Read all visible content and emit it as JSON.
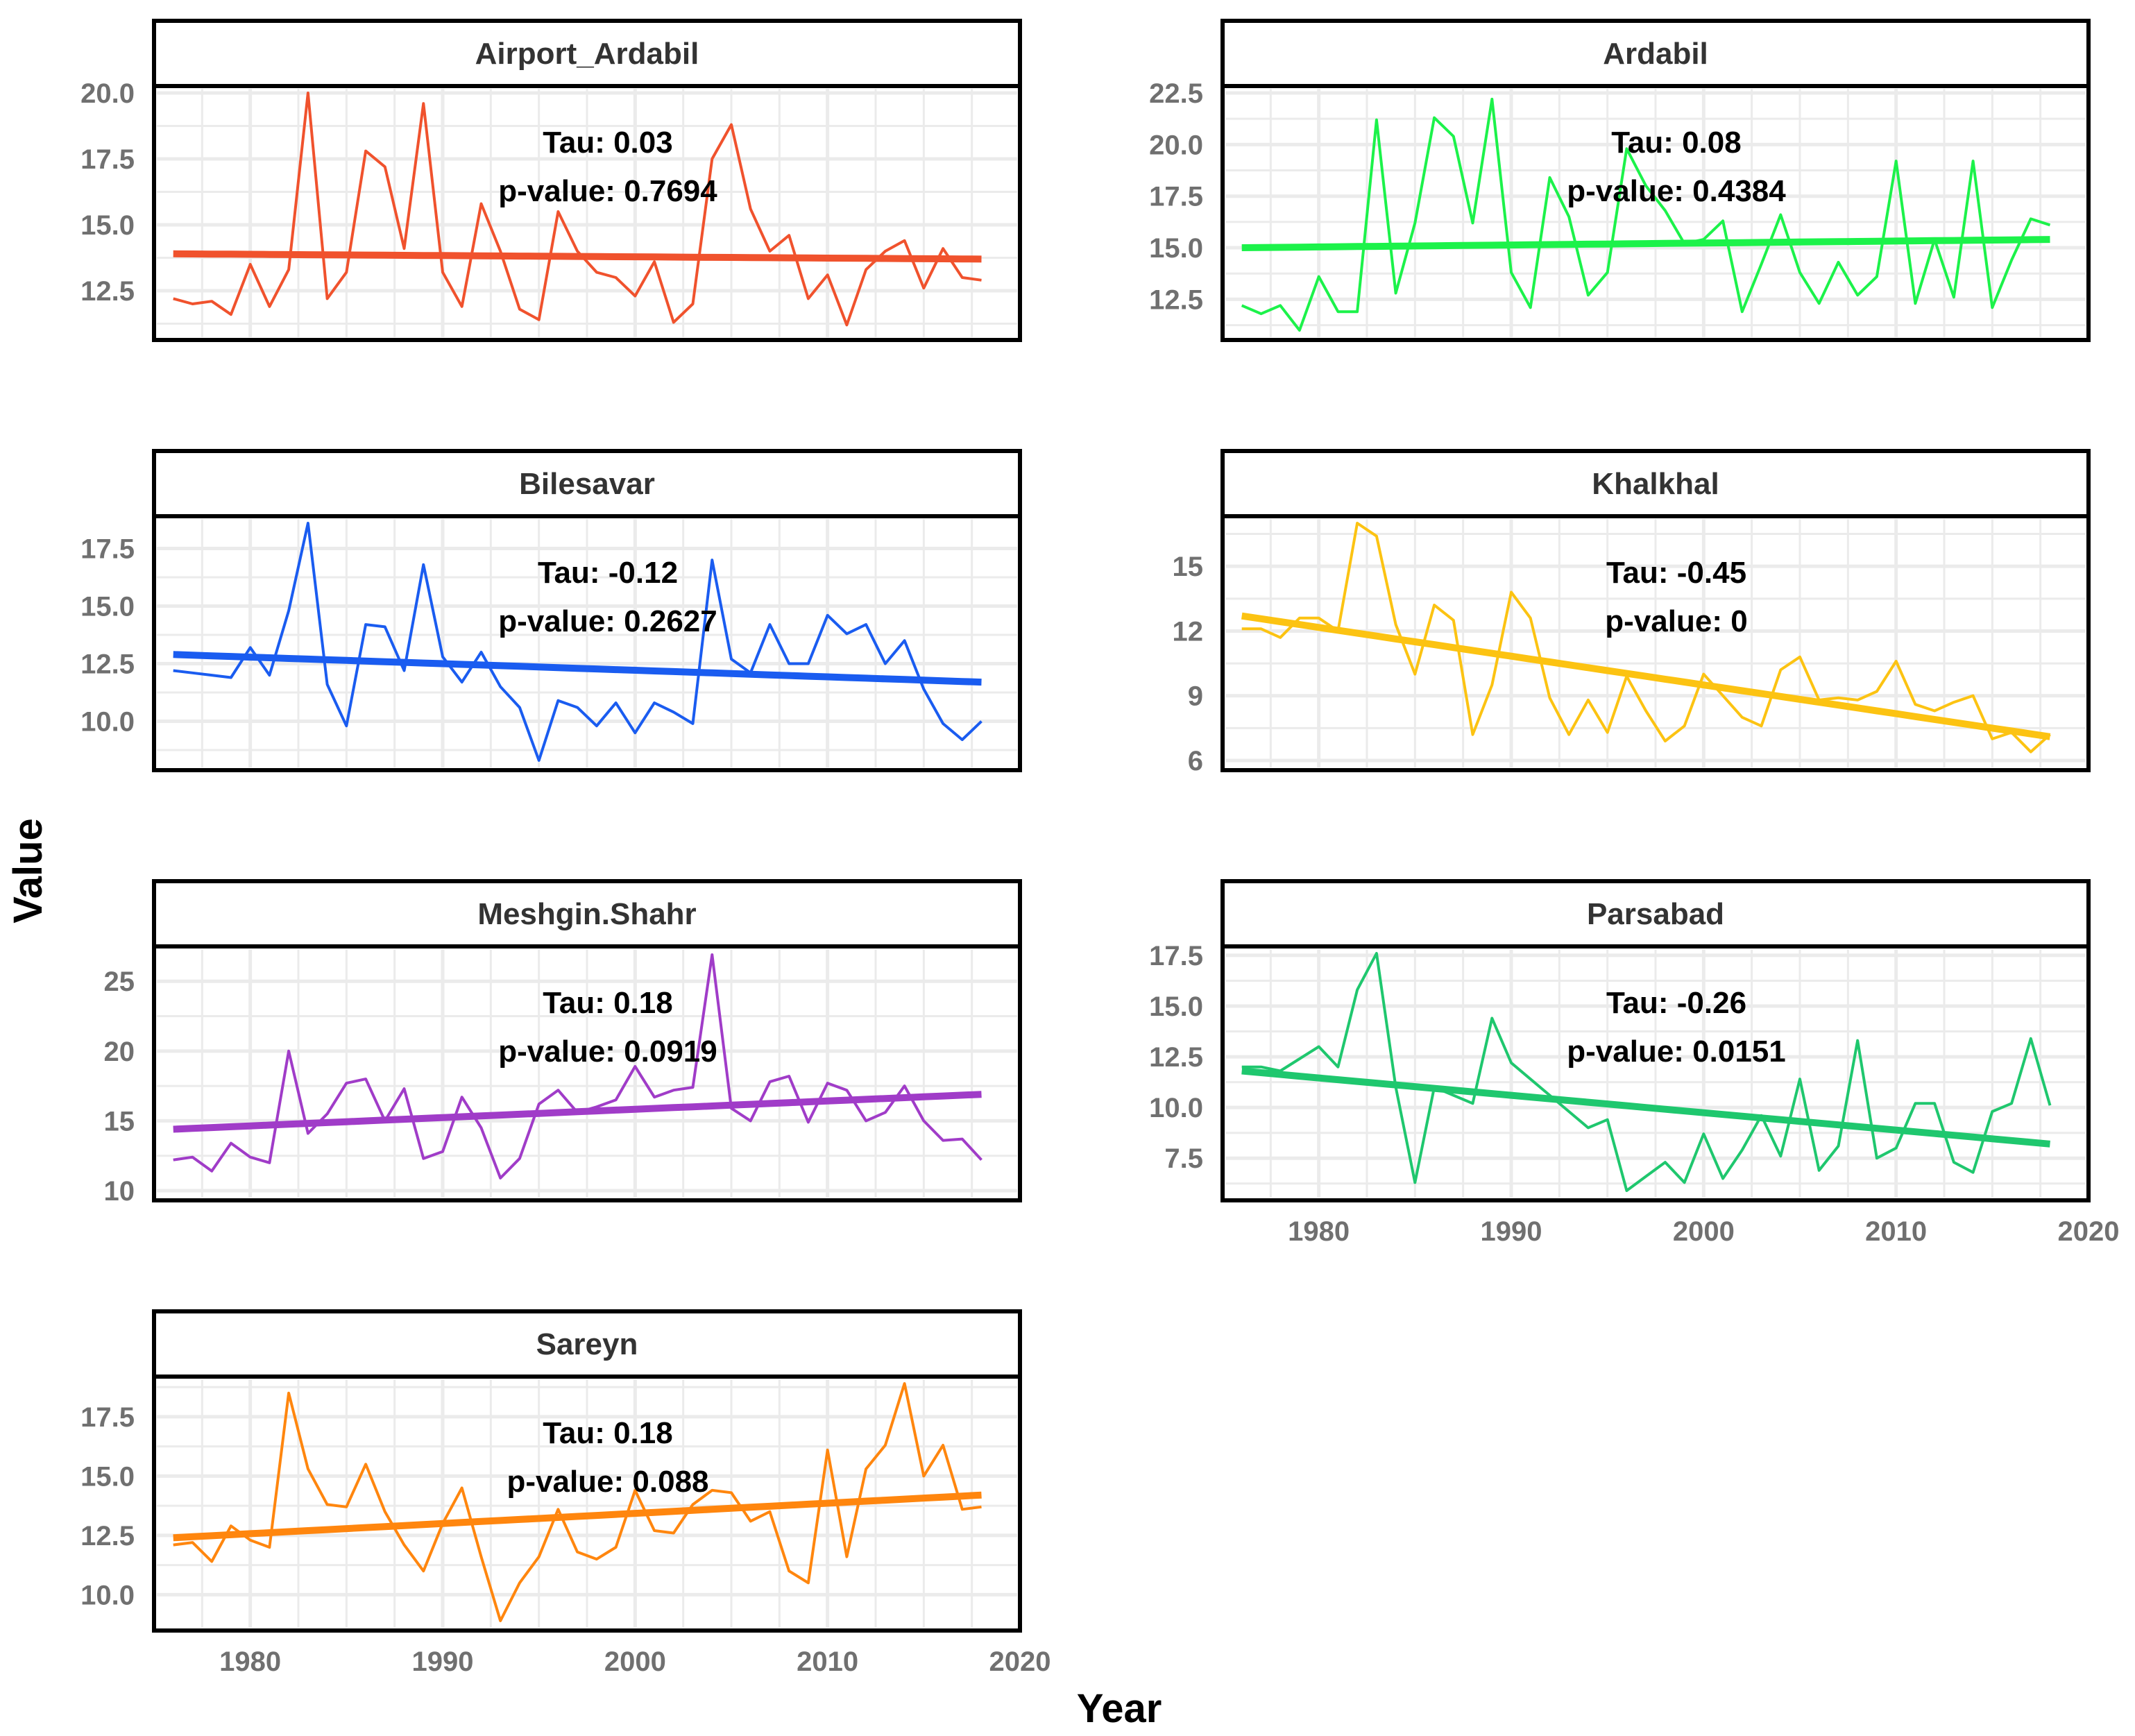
{
  "chart_data": {
    "type": "line",
    "xlabel": "Year",
    "ylabel": "Value",
    "xlim": [
      1975,
      2020
    ],
    "x_ticks": [
      1980,
      1990,
      2000,
      2010,
      2020
    ],
    "years": [
      1976,
      1977,
      1978,
      1979,
      1980,
      1981,
      1982,
      1983,
      1984,
      1985,
      1986,
      1987,
      1988,
      1989,
      1990,
      1991,
      1992,
      1993,
      1994,
      1995,
      1996,
      1997,
      1998,
      1999,
      2000,
      2001,
      2002,
      2003,
      2004,
      2005,
      2006,
      2007,
      2008,
      2009,
      2010,
      2011,
      2012,
      2013,
      2014,
      2015,
      2016,
      2017,
      2018
    ],
    "panels": [
      {
        "name": "Airport_Ardabil",
        "color": "#F0522D",
        "tau_label": "Tau: 0.03",
        "p_label": "p-value: 0.7694",
        "ylim": [
          11.0,
          20.0
        ],
        "y_ticks": [
          12.5,
          15.0,
          17.5,
          20.0
        ],
        "y_tick_labels": [
          "12.5",
          "15.0",
          "17.5",
          "20.0"
        ],
        "values": [
          12.2,
          12.0,
          12.1,
          11.6,
          13.5,
          11.9,
          13.3,
          20.0,
          12.2,
          13.2,
          17.8,
          17.2,
          14.1,
          19.6,
          13.2,
          11.9,
          15.8,
          14.0,
          11.8,
          11.4,
          15.5,
          14.0,
          13.2,
          13.0,
          12.3,
          13.6,
          11.3,
          12.0,
          17.5,
          18.8,
          15.6,
          14.0,
          14.6,
          12.2,
          13.1,
          11.2,
          13.3,
          14.0,
          14.4,
          12.6,
          14.1,
          13.0,
          12.9
        ],
        "trend": [
          13.9,
          13.7
        ]
      },
      {
        "name": "Ardabil",
        "color": "#1CF24A",
        "tau_label": "Tau: 0.08",
        "p_label": "p-value: 0.4384",
        "ylim": [
          11.0,
          22.5
        ],
        "y_ticks": [
          12.5,
          15.0,
          17.5,
          20.0,
          22.5
        ],
        "y_tick_labels": [
          "12.5",
          "15.0",
          "17.5",
          "20.0",
          "22.5"
        ],
        "values": [
          12.2,
          11.8,
          12.2,
          11.0,
          13.6,
          11.9,
          11.9,
          21.2,
          12.8,
          16.2,
          21.3,
          20.4,
          16.2,
          22.2,
          13.8,
          12.1,
          18.4,
          16.5,
          12.7,
          13.8,
          19.8,
          18.0,
          16.8,
          15.2,
          15.4,
          16.3,
          11.9,
          14.2,
          16.6,
          13.8,
          12.3,
          14.3,
          12.7,
          13.6,
          19.2,
          12.3,
          15.4,
          12.6,
          19.2,
          12.1,
          14.4,
          16.4,
          16.1
        ],
        "trend": [
          15.0,
          15.4
        ]
      },
      {
        "name": "Bilesavar",
        "color": "#1A5CF0",
        "tau_label": "Tau: -0.12",
        "p_label": "p-value: 0.2627",
        "ylim": [
          8.3,
          18.6
        ],
        "y_ticks": [
          10.0,
          12.5,
          15.0,
          17.5
        ],
        "y_tick_labels": [
          "10.0",
          "12.5",
          "15.0",
          "17.5"
        ],
        "values": [
          12.2,
          12.1,
          12.0,
          11.9,
          13.2,
          12.0,
          14.8,
          18.6,
          11.6,
          9.8,
          14.2,
          14.1,
          12.2,
          16.8,
          12.8,
          11.7,
          13.0,
          11.5,
          10.6,
          8.3,
          10.9,
          10.6,
          9.8,
          10.8,
          9.5,
          10.8,
          10.4,
          9.9,
          17.0,
          12.7,
          12.1,
          14.2,
          12.5,
          12.5,
          14.6,
          13.8,
          14.2,
          12.5,
          13.5,
          11.4,
          9.9,
          9.2,
          10.0
        ],
        "trend": [
          12.9,
          11.7
        ]
      },
      {
        "name": "Khalkhal",
        "color": "#FCC312",
        "tau_label": "Tau: -0.45",
        "p_label": "p-value: 0",
        "ylim": [
          6.0,
          17.0
        ],
        "y_ticks": [
          6,
          9,
          12,
          15
        ],
        "y_tick_labels": [
          "6",
          "9",
          "12",
          "15"
        ],
        "values": [
          12.1,
          12.1,
          11.7,
          12.6,
          12.6,
          12.0,
          17.0,
          16.4,
          12.3,
          10.0,
          13.2,
          12.5,
          7.2,
          9.5,
          13.8,
          12.6,
          8.9,
          7.2,
          8.8,
          7.3,
          9.9,
          8.3,
          6.9,
          7.6,
          10.0,
          9.0,
          8.0,
          7.6,
          10.2,
          10.8,
          8.8,
          8.9,
          8.8,
          9.2,
          10.6,
          8.6,
          8.3,
          8.7,
          9.0,
          7.0,
          7.3,
          6.4,
          7.2
        ],
        "trend": [
          12.7,
          7.1
        ]
      },
      {
        "name": "Meshgin.Shahr",
        "color": "#A03CC8",
        "tau_label": "Tau: 0.18",
        "p_label": "p-value: 0.0919",
        "ylim": [
          10.0,
          27.0
        ],
        "y_ticks": [
          10,
          15,
          20,
          25
        ],
        "y_tick_labels": [
          "10",
          "15",
          "20",
          "25"
        ],
        "values": [
          12.2,
          12.4,
          11.4,
          13.4,
          12.4,
          12.0,
          20.0,
          14.1,
          15.5,
          17.7,
          18.0,
          15.0,
          17.3,
          12.3,
          12.8,
          16.7,
          14.5,
          10.9,
          12.3,
          16.2,
          17.2,
          15.6,
          16.0,
          16.5,
          18.9,
          16.7,
          17.2,
          17.4,
          26.9,
          15.9,
          15.0,
          17.8,
          18.2,
          14.9,
          17.7,
          17.2,
          15.0,
          15.6,
          17.5,
          15.0,
          13.6,
          13.7,
          12.2
        ],
        "trend": [
          14.4,
          16.9
        ]
      },
      {
        "name": "Parsabad",
        "color": "#1FC76E",
        "tau_label": "Tau: -0.26",
        "p_label": "p-value: 0.0151",
        "ylim": [
          5.9,
          17.6
        ],
        "y_ticks": [
          7.5,
          10.0,
          12.5,
          15.0,
          17.5
        ],
        "y_tick_labels": [
          "7.5",
          "10.0",
          "12.5",
          "15.0",
          "17.5"
        ],
        "values": [
          12.0,
          12.0,
          11.8,
          12.4,
          13.0,
          12.0,
          15.8,
          17.6,
          11.0,
          6.3,
          11.0,
          10.6,
          10.2,
          14.4,
          12.2,
          11.4,
          10.6,
          9.8,
          9.0,
          9.4,
          5.9,
          6.6,
          7.3,
          6.3,
          8.7,
          6.5,
          7.9,
          9.6,
          7.6,
          11.4,
          6.9,
          8.1,
          13.3,
          7.5,
          8.0,
          10.2,
          10.2,
          7.3,
          6.8,
          9.8,
          10.2,
          13.4,
          10.1
        ],
        "trend": [
          11.8,
          8.2
        ]
      },
      {
        "name": "Sareyn",
        "color": "#FF860E",
        "tau_label": "Tau: 0.18",
        "p_label": "p-value: 0.088",
        "ylim": [
          8.9,
          18.9
        ],
        "y_ticks": [
          10.0,
          12.5,
          15.0,
          17.5
        ],
        "y_tick_labels": [
          "10.0",
          "12.5",
          "15.0",
          "17.5"
        ],
        "values": [
          12.1,
          12.2,
          11.4,
          12.9,
          12.3,
          12.0,
          18.5,
          15.3,
          13.8,
          13.7,
          15.5,
          13.5,
          12.1,
          11.0,
          13.0,
          14.5,
          11.6,
          8.9,
          10.5,
          11.6,
          13.6,
          11.8,
          11.5,
          12.0,
          14.4,
          12.7,
          12.6,
          13.8,
          14.4,
          14.3,
          13.1,
          13.5,
          11.0,
          10.5,
          16.1,
          11.6,
          15.3,
          16.3,
          18.9,
          15.0,
          16.3,
          13.6,
          13.7
        ],
        "trend": [
          12.4,
          14.2
        ]
      }
    ]
  }
}
